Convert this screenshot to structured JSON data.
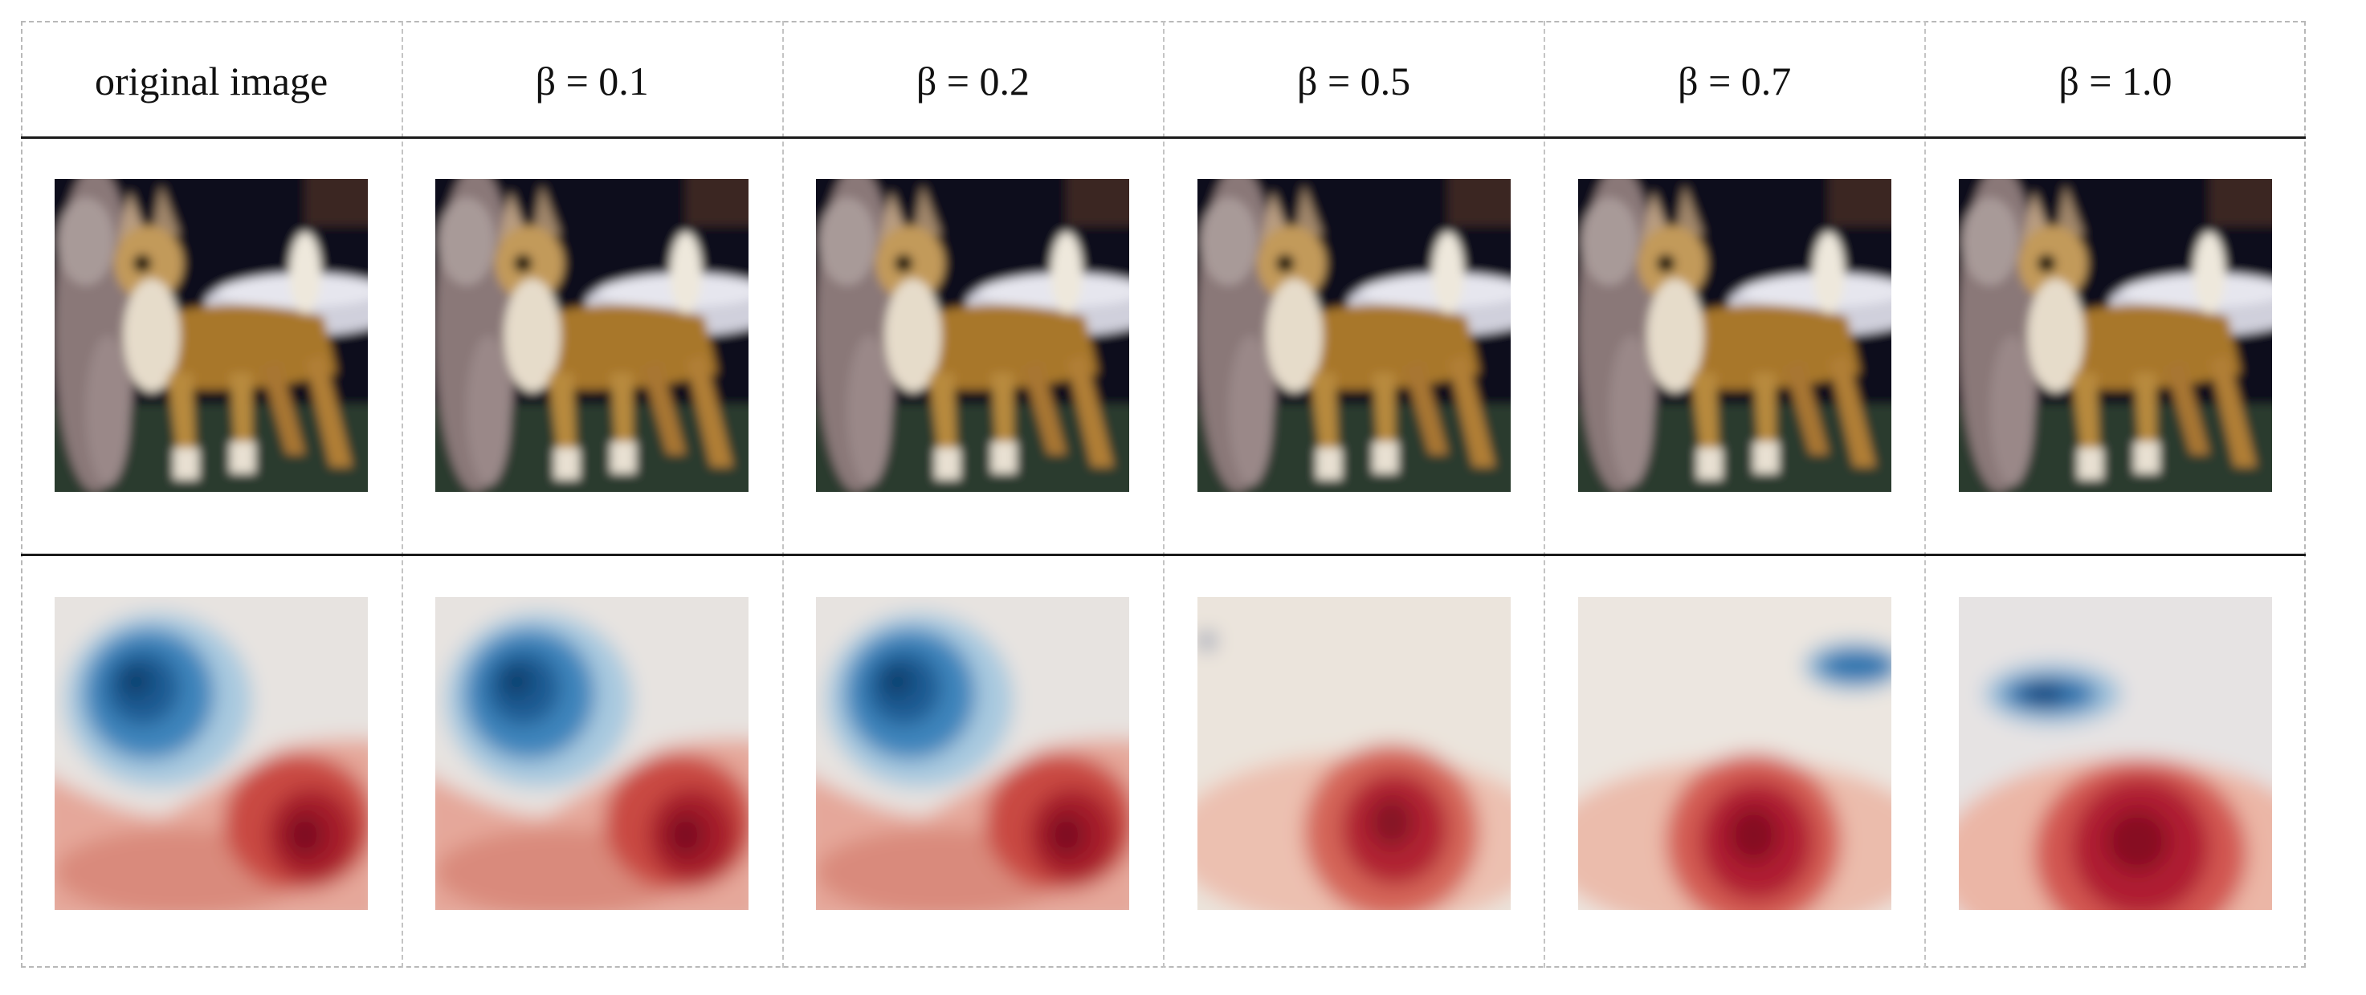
{
  "figure": {
    "columns": [
      {
        "header": "original image",
        "heatmap_variant": "A"
      },
      {
        "header": "β = 0.1",
        "heatmap_variant": "A"
      },
      {
        "header": "β = 0.2",
        "heatmap_variant": "A"
      },
      {
        "header": "β = 0.5",
        "heatmap_variant": "B"
      },
      {
        "header": "β = 0.7",
        "heatmap_variant": "C"
      },
      {
        "header": "β = 1.0",
        "heatmap_variant": "D"
      }
    ],
    "colors": {
      "rule": "#1a1a1a",
      "dashed_border": "#b8b8b8",
      "heatmap_positive": "#b2182b",
      "heatmap_negative": "#2166ac",
      "heatmap_neutral": "#f2ece9"
    }
  }
}
